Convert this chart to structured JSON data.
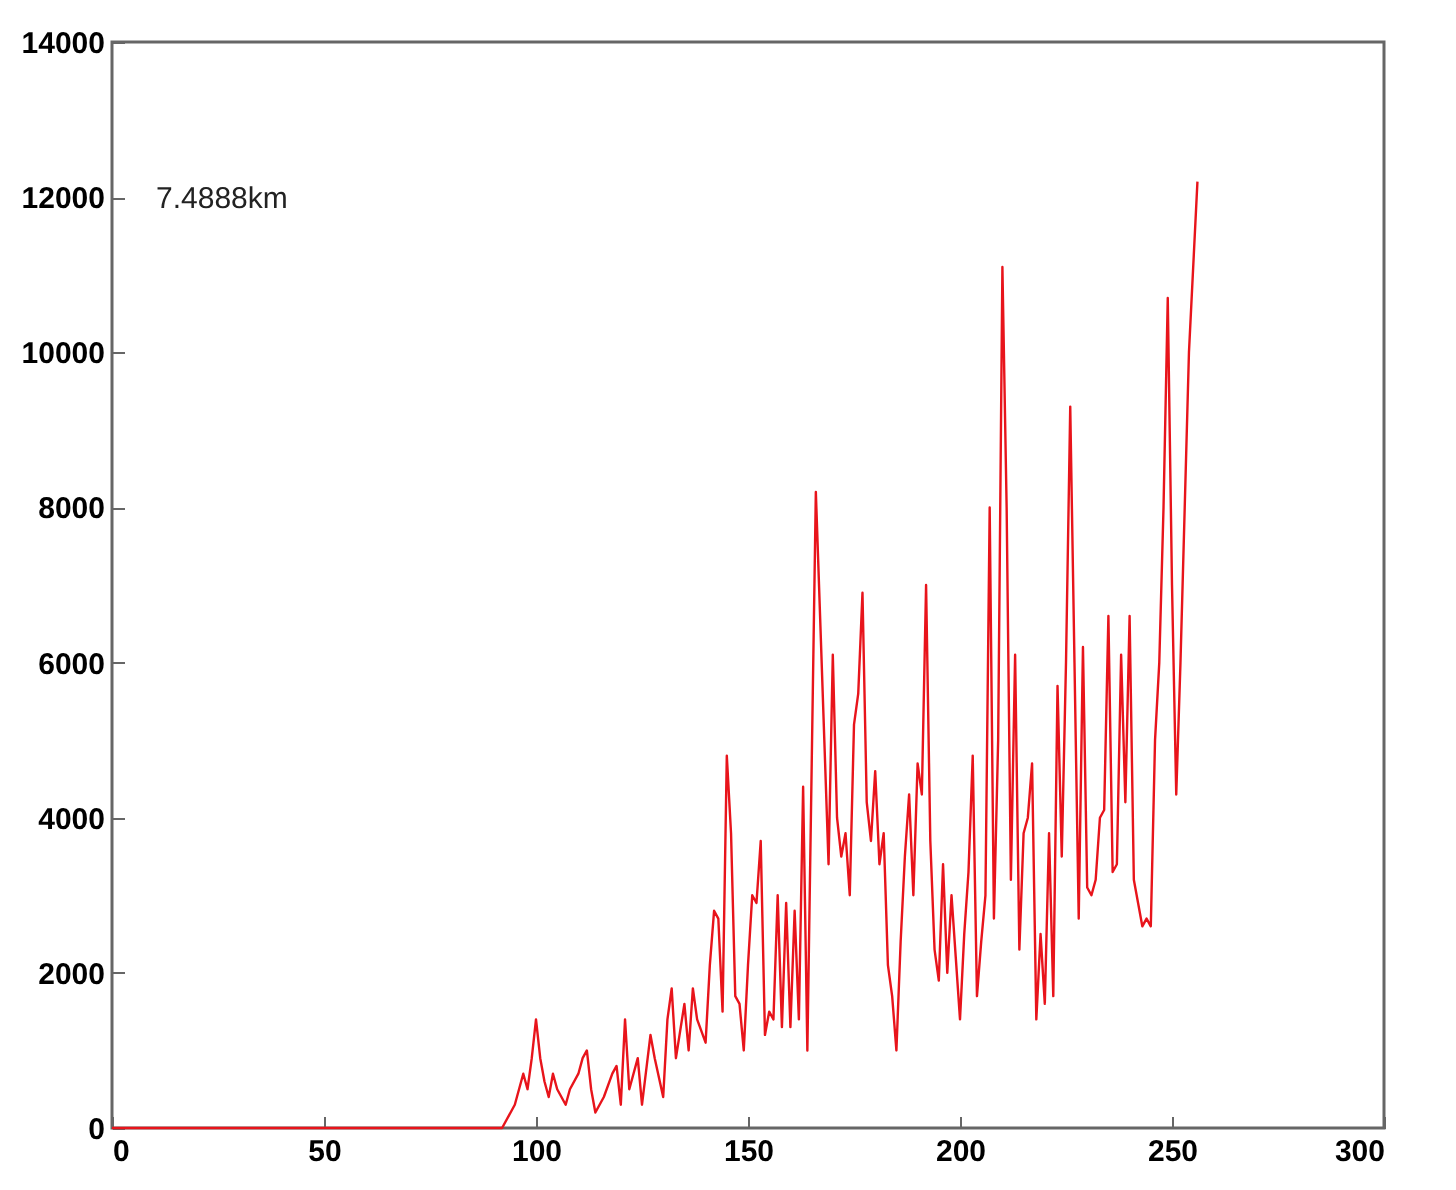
{
  "chart_data": {
    "type": "line",
    "annotations": [
      "7.4888km"
    ],
    "x": [
      0,
      92,
      95,
      97,
      98,
      99,
      100,
      101,
      102,
      103,
      104,
      105,
      107,
      108,
      110,
      111,
      112,
      113,
      114,
      116,
      118,
      119,
      120,
      121,
      122,
      124,
      125,
      127,
      128,
      130,
      131,
      132,
      133,
      135,
      136,
      137,
      138,
      140,
      141,
      142,
      143,
      144,
      145,
      146,
      147,
      148,
      149,
      150,
      151,
      152,
      153,
      154,
      155,
      156,
      157,
      158,
      159,
      160,
      161,
      162,
      163,
      164,
      166,
      168,
      169,
      170,
      171,
      172,
      173,
      174,
      175,
      176,
      177,
      178,
      179,
      180,
      181,
      182,
      183,
      184,
      185,
      186,
      187,
      188,
      189,
      190,
      191,
      192,
      193,
      194,
      195,
      196,
      197,
      198,
      199,
      200,
      201,
      202,
      203,
      204,
      205,
      206,
      207,
      208,
      209,
      210,
      211,
      212,
      213,
      214,
      215,
      216,
      217,
      218,
      219,
      220,
      221,
      222,
      223,
      224,
      225,
      226,
      227,
      228,
      229,
      230,
      231,
      232,
      233,
      234,
      235,
      236,
      237,
      238,
      239,
      240,
      241,
      242,
      243,
      244,
      245,
      246,
      247,
      248,
      249,
      250,
      251,
      252,
      253,
      254,
      256
    ],
    "series": [
      {
        "color": "#e8141b",
        "values": [
          0,
          0,
          300,
          700,
          500,
          900,
          1400,
          900,
          600,
          400,
          700,
          500,
          300,
          500,
          700,
          900,
          1000,
          500,
          200,
          400,
          700,
          800,
          300,
          1400,
          500,
          900,
          300,
          1200,
          900,
          400,
          1400,
          1800,
          900,
          1600,
          1000,
          1800,
          1400,
          1100,
          2100,
          2800,
          2700,
          1500,
          4800,
          3800,
          1700,
          1600,
          1000,
          2100,
          3000,
          2900,
          3700,
          1200,
          1500,
          1400,
          3000,
          1300,
          2900,
          1300,
          2800,
          1400,
          4400,
          1000,
          8200,
          5000,
          3400,
          6100,
          4000,
          3500,
          3800,
          3000,
          5200,
          5600,
          6900,
          4200,
          3700,
          4600,
          3400,
          3800,
          2100,
          1700,
          1000,
          2400,
          3500,
          4300,
          3000,
          4700,
          4300,
          7000,
          3700,
          2300,
          1900,
          3400,
          2000,
          3000,
          2200,
          1400,
          2500,
          3300,
          4800,
          1700,
          2400,
          3000,
          8000,
          2700,
          5000,
          11100,
          8000,
          3200,
          6100,
          2300,
          3800,
          4000,
          4700,
          1400,
          2500,
          1600,
          3800,
          1700,
          5700,
          3500,
          6000,
          9300,
          6000,
          2700,
          6200,
          3100,
          3000,
          3200,
          4000,
          4100,
          6600,
          3300,
          3400,
          6100,
          4200,
          6600,
          3200,
          2900,
          2600,
          2700,
          2600,
          5000,
          6000,
          8000,
          10700,
          7000,
          4300,
          6000,
          8000,
          10000,
          12200
        ]
      }
    ],
    "xlim": [
      0,
      300
    ],
    "xticks": [
      0,
      50,
      100,
      150,
      200,
      250,
      300
    ],
    "ylim": [
      0,
      14000
    ],
    "yticks": [
      0,
      2000,
      4000,
      6000,
      8000,
      10000,
      12000,
      14000
    ],
    "grid": false,
    "marker": "none",
    "line_style": "solid"
  }
}
